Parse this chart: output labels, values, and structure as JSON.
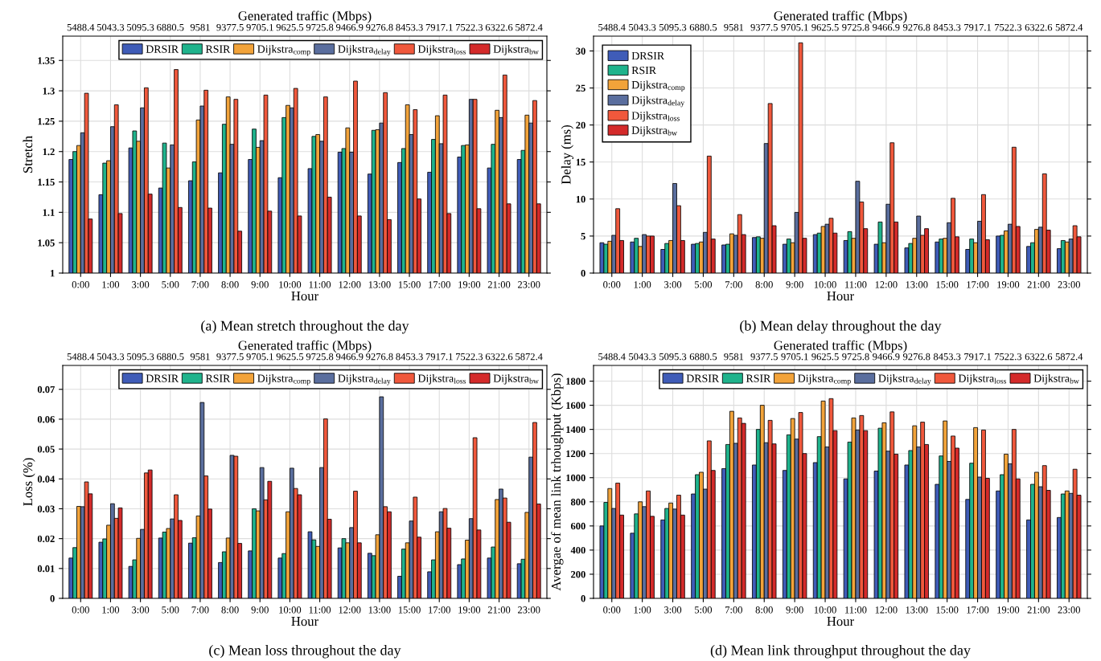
{
  "chart_data": [
    {
      "type": "bar",
      "xlabel": "Hour",
      "ylabel": "Stretch",
      "x2label": "Generated traffic (Mbps)",
      "annotations": [
        "(a) Mean stretch throughout the day",
        "5488.4",
        "5043.3",
        "5095.3",
        "6880.5",
        "9581",
        "9377.5",
        "9705.1",
        "9625.5",
        "9725.8",
        "9466.9",
        "9276.8",
        "8453.3",
        "7917.1",
        "7522.3",
        "6322.6",
        "5872.4"
      ],
      "categories": [
        "0:00",
        "1:00",
        "3:00",
        "5:00",
        "7:00",
        "8:00",
        "9:00",
        "10:00",
        "11:00",
        "12:00",
        "13:00",
        "15:00",
        "17:00",
        "19:00",
        "21:00",
        "23:00"
      ],
      "ylim": [
        1,
        1.39
      ],
      "yticks": [
        1,
        1.05,
        1.1,
        1.15,
        1.2,
        1.25,
        1.3,
        1.35
      ],
      "grid": true,
      "legend": "top right",
      "series": [
        {
          "name": "DRSIR",
          "color": "#3f5cb8",
          "values": [
            1.187,
            1.129,
            1.206,
            1.14,
            1.152,
            1.165,
            1.187,
            1.157,
            1.172,
            1.199,
            1.163,
            1.182,
            1.166,
            1.191,
            1.173,
            1.187
          ]
        },
        {
          "name": "RSIR",
          "color": "#1fb38c",
          "values": [
            1.2,
            1.181,
            1.234,
            1.214,
            1.183,
            1.245,
            1.237,
            1.256,
            1.225,
            1.205,
            1.235,
            1.205,
            1.22,
            1.21,
            1.212,
            1.202
          ]
        },
        {
          "name": "Dijkstra$_{comp}$",
          "color": "#f2a33a",
          "values": [
            1.21,
            1.185,
            1.217,
            1.173,
            1.252,
            1.29,
            1.207,
            1.276,
            1.228,
            1.239,
            1.236,
            1.277,
            1.259,
            1.211,
            1.268,
            1.26
          ]
        },
        {
          "name": "Dijkstra$_{delay}$",
          "color": "#5a6e9e",
          "values": [
            1.231,
            1.241,
            1.272,
            1.211,
            1.275,
            1.212,
            1.218,
            1.272,
            1.217,
            1.199,
            1.247,
            1.228,
            1.213,
            1.286,
            1.256,
            1.247
          ]
        },
        {
          "name": "Dijkstra$_{loss}$",
          "color": "#f0583c",
          "values": [
            1.296,
            1.277,
            1.305,
            1.335,
            1.301,
            1.286,
            1.293,
            1.304,
            1.29,
            1.316,
            1.297,
            1.269,
            1.293,
            1.286,
            1.326,
            1.284
          ]
        },
        {
          "name": "Dijkstra$_{bw}$",
          "color": "#d42a2a",
          "values": [
            1.089,
            1.098,
            1.13,
            1.108,
            1.107,
            1.069,
            1.102,
            1.094,
            1.125,
            1.094,
            1.088,
            1.122,
            1.098,
            1.106,
            1.114,
            1.114
          ]
        }
      ]
    },
    {
      "type": "bar",
      "xlabel": "Hour",
      "ylabel": "Delay (ms)",
      "x2label": "Generated traffic (Mbps)",
      "annotations": [
        "(b) Mean delay throughout the day",
        "5488.4",
        "5043.3",
        "5095.3",
        "6880.5",
        "9581",
        "9377.5",
        "9705.1",
        "9625.5",
        "9725.8",
        "9466.9",
        "9276.8",
        "8453.3",
        "7917.1",
        "7522.3",
        "6322.6",
        "5872.4"
      ],
      "categories": [
        "0:00",
        "1:00",
        "3:00",
        "5:00",
        "7:00",
        "8:00",
        "9:00",
        "10:00",
        "11:00",
        "12:00",
        "13:00",
        "15:00",
        "17:00",
        "19:00",
        "21:00",
        "23:00"
      ],
      "ylim": [
        0,
        32
      ],
      "yticks": [
        0,
        5,
        10,
        15,
        20,
        25,
        30
      ],
      "grid": true,
      "legend": "top left",
      "series": [
        {
          "name": "DRSIR",
          "color": "#3f5cb8",
          "values": [
            4.1,
            4.2,
            3.2,
            3.9,
            3.8,
            4.8,
            3.9,
            5.2,
            4.4,
            3.9,
            3.4,
            4.2,
            3.2,
            5.0,
            3.6,
            3.3
          ]
        },
        {
          "name": "RSIR",
          "color": "#1fb38c",
          "values": [
            3.9,
            4.7,
            4.0,
            4.0,
            3.9,
            4.9,
            4.6,
            5.4,
            5.6,
            6.9,
            4.0,
            4.6,
            4.6,
            5.1,
            4.1,
            4.4
          ]
        },
        {
          "name": "Dijkstra$_{comp}$",
          "color": "#f2a33a",
          "values": [
            4.3,
            3.6,
            4.4,
            4.2,
            5.3,
            4.7,
            4.1,
            6.3,
            4.7,
            4.1,
            4.7,
            4.7,
            4.1,
            5.7,
            5.9,
            4.2
          ]
        },
        {
          "name": "Dijkstra$_{delay}$",
          "color": "#5a6e9e",
          "values": [
            5.1,
            5.2,
            12.1,
            5.5,
            5.1,
            17.5,
            8.2,
            6.6,
            12.4,
            9.3,
            7.7,
            6.8,
            7.0,
            6.6,
            6.2,
            4.6
          ]
        },
        {
          "name": "Dijkstra$_{loss}$",
          "color": "#f0583c",
          "values": [
            8.7,
            5.0,
            9.1,
            15.8,
            7.9,
            22.9,
            31.1,
            7.4,
            9.6,
            17.6,
            5.1,
            10.1,
            10.6,
            17.0,
            13.4,
            6.4
          ]
        },
        {
          "name": "Dijkstra$_{bw}$",
          "color": "#d42a2a",
          "values": [
            4.4,
            5.0,
            4.4,
            4.6,
            5.2,
            6.4,
            4.7,
            5.4,
            6.0,
            6.9,
            6.0,
            4.9,
            4.5,
            6.3,
            5.8,
            4.9
          ]
        }
      ]
    },
    {
      "type": "bar",
      "xlabel": "Hour",
      "ylabel": "Loss (%)",
      "x2label": "Generated traffic (Mbps)",
      "annotations": [
        "(c) Mean loss throughout the day",
        "5488.4",
        "5043.3",
        "5095.3",
        "6880.5",
        "9581",
        "9377.5",
        "9705.1",
        "9625.5",
        "9725.8",
        "9466.9",
        "9276.8",
        "8453.3",
        "7917.1",
        "7522.3",
        "6322.6",
        "5872.4"
      ],
      "categories": [
        "0:00",
        "1:00",
        "3:00",
        "5:00",
        "7:00",
        "8:00",
        "9:00",
        "10:00",
        "11:00",
        "12:00",
        "13:00",
        "15:00",
        "17:00",
        "19:00",
        "21:00",
        "23:00"
      ],
      "ylim": [
        0,
        0.078
      ],
      "yticks": [
        0,
        0.01,
        0.02,
        0.03,
        0.04,
        0.05,
        0.06,
        0.07
      ],
      "grid": true,
      "legend": "top right",
      "series": [
        {
          "name": "DRSIR",
          "color": "#3f5cb8",
          "values": [
            0.0135,
            0.0188,
            0.0107,
            0.0202,
            0.0185,
            0.012,
            0.0159,
            0.0135,
            0.0223,
            0.0169,
            0.0151,
            0.0074,
            0.0089,
            0.0113,
            0.0135,
            0.0116
          ]
        },
        {
          "name": "RSIR",
          "color": "#1fb38c",
          "values": [
            0.017,
            0.0199,
            0.0129,
            0.0222,
            0.0203,
            0.0156,
            0.03,
            0.015,
            0.0196,
            0.02,
            0.0143,
            0.0165,
            0.0129,
            0.0132,
            0.0172,
            0.0131
          ]
        },
        {
          "name": "Dijkstra$_{comp}$",
          "color": "#f2a33a",
          "values": [
            0.0308,
            0.0245,
            0.0201,
            0.0234,
            0.0276,
            0.0202,
            0.0293,
            0.029,
            0.0174,
            0.0186,
            0.0213,
            0.0186,
            0.0223,
            0.0195,
            0.0331,
            0.0288
          ]
        },
        {
          "name": "Dijkstra$_{delay}$",
          "color": "#5a6e9e",
          "values": [
            0.0307,
            0.0317,
            0.0231,
            0.0266,
            0.0656,
            0.0479,
            0.0438,
            0.0436,
            0.0438,
            0.0237,
            0.0675,
            0.0259,
            0.029,
            0.0267,
            0.0366,
            0.0473
          ]
        },
        {
          "name": "Dijkstra$_{loss}$",
          "color": "#f0583c",
          "values": [
            0.039,
            0.0268,
            0.042,
            0.0347,
            0.041,
            0.0476,
            0.033,
            0.0368,
            0.0601,
            0.0359,
            0.0307,
            0.0339,
            0.0301,
            0.0538,
            0.0336,
            0.0589
          ]
        },
        {
          "name": "Dijkstra$_{bw}$",
          "color": "#d42a2a",
          "values": [
            0.035,
            0.0303,
            0.043,
            0.0261,
            0.0299,
            0.0184,
            0.0392,
            0.0347,
            0.0265,
            0.0186,
            0.029,
            0.0205,
            0.0235,
            0.0229,
            0.0255,
            0.0316
          ]
        }
      ]
    },
    {
      "type": "bar",
      "xlabel": "Hour",
      "ylabel": "Avergae of mean link trhoughput (Kbps)",
      "x2label": "Generated traffic (Mbps)",
      "annotations": [
        "(d) Mean link throughput throughout the day",
        "5488.4",
        "5043.3",
        "5095.3",
        "6880.5",
        "9581",
        "9377.5",
        "9705.1",
        "9625.5",
        "9725.8",
        "9466.9",
        "9276.8",
        "8453.3",
        "7917.1",
        "7522.3",
        "6322.6",
        "5872.4"
      ],
      "categories": [
        "0:00",
        "1:00",
        "3:00",
        "5:00",
        "7:00",
        "8:00",
        "9:00",
        "10:00",
        "11:00",
        "12:00",
        "13:00",
        "15:00",
        "17:00",
        "19:00",
        "21:00",
        "23:00"
      ],
      "ylim": [
        0,
        1930
      ],
      "yticks": [
        0,
        200,
        400,
        600,
        800,
        1000,
        1200,
        1400,
        1600,
        1800
      ],
      "grid": true,
      "legend": "top right",
      "series": [
        {
          "name": "DRSIR",
          "color": "#3f5cb8",
          "values": [
            600,
            540,
            650,
            865,
            1075,
            1105,
            1060,
            1125,
            990,
            1055,
            1105,
            945,
            820,
            890,
            650,
            670
          ]
        },
        {
          "name": "RSIR",
          "color": "#1fb38c",
          "values": [
            795,
            700,
            745,
            1025,
            1275,
            1400,
            1355,
            1340,
            1295,
            1410,
            1225,
            1180,
            1120,
            1025,
            945,
            865
          ]
        },
        {
          "name": "Dijkstra$_{comp}$",
          "color": "#f2a33a",
          "values": [
            910,
            800,
            790,
            1045,
            1550,
            1600,
            1490,
            1635,
            1495,
            1455,
            1430,
            1470,
            1415,
            1195,
            1045,
            890
          ]
        },
        {
          "name": "Dijkstra$_{delay}$",
          "color": "#5a6e9e",
          "values": [
            745,
            760,
            740,
            905,
            1285,
            1290,
            1320,
            1255,
            1395,
            1220,
            1255,
            1135,
            1005,
            1115,
            925,
            870
          ]
        },
        {
          "name": "Dijkstra$_{loss}$",
          "color": "#f0583c",
          "values": [
            955,
            890,
            855,
            1305,
            1495,
            1475,
            1540,
            1655,
            1515,
            1545,
            1460,
            1345,
            1395,
            1400,
            1100,
            1070
          ]
        },
        {
          "name": "Dijkstra$_{bw}$",
          "color": "#d42a2a",
          "values": [
            690,
            680,
            690,
            1060,
            1450,
            1280,
            1200,
            1390,
            1390,
            1195,
            1275,
            1245,
            995,
            990,
            895,
            855
          ]
        }
      ]
    }
  ]
}
